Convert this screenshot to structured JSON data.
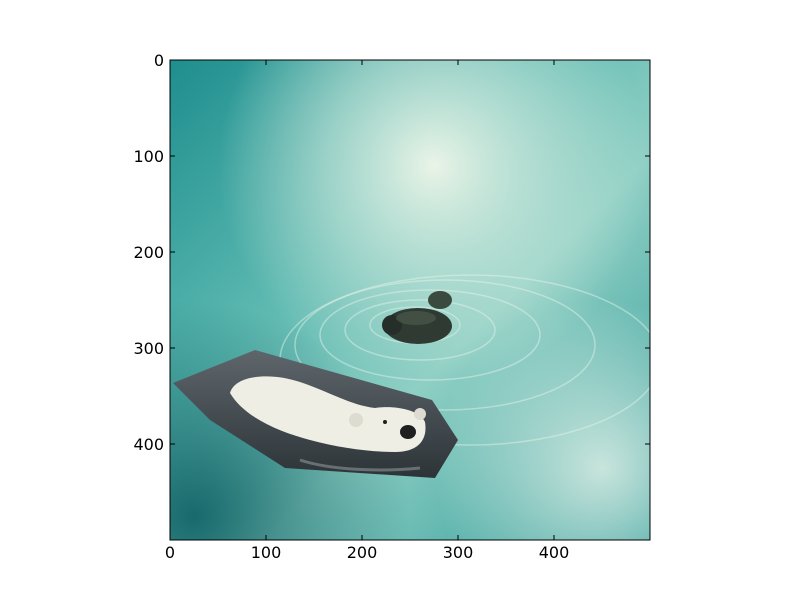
{
  "figure": {
    "type": "image-plot",
    "background_color": "#ffffff",
    "axes": {
      "x_ticks": [
        0,
        100,
        200,
        300,
        400
      ],
      "y_ticks": [
        0,
        100,
        200,
        300,
        400
      ],
      "x_range": [
        0,
        500
      ],
      "y_range": [
        0,
        500
      ],
      "y_inverted": true,
      "x_tick_labels": [
        "0",
        "100",
        "200",
        "300",
        "400"
      ],
      "y_tick_labels": [
        "0",
        "100",
        "200",
        "300",
        "400"
      ]
    },
    "image": {
      "subject_main": "water surface with a duck",
      "subject_overlay": "polar bear swimming, pasted as a polygon patch",
      "colors": {
        "water_dark": "#147d80",
        "water_mid": "#3aa6a4",
        "water_light": "#d8efe2",
        "water_highlight": "#eef6ea",
        "duck": "#2f3a33",
        "bear_fur": "#eeeee4",
        "bear_water": "#4a5258"
      }
    }
  }
}
